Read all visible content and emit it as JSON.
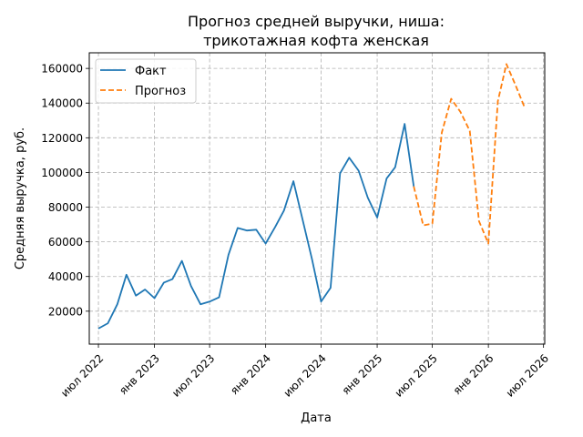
{
  "chart_data": {
    "type": "line",
    "title_line1": "Прогноз средней выручки, ниша:",
    "title_line2": "трикотажная кофта женская",
    "xlabel": "Дата",
    "ylabel": "Средняя выручка, руб.",
    "xlim": [
      "2022-06-01",
      "2026-07-05"
    ],
    "ylim": [
      1000,
      169000
    ],
    "grid": true,
    "legend_position": "top-left",
    "x_ticks": [
      {
        "date": "2022-07-01",
        "label": "июл 2022"
      },
      {
        "date": "2023-01-01",
        "label": "янв 2023"
      },
      {
        "date": "2023-07-01",
        "label": "июл 2023"
      },
      {
        "date": "2024-01-01",
        "label": "янв 2024"
      },
      {
        "date": "2024-07-01",
        "label": "июл 2024"
      },
      {
        "date": "2025-01-01",
        "label": "янв 2025"
      },
      {
        "date": "2025-07-01",
        "label": "июл 2025"
      },
      {
        "date": "2026-01-01",
        "label": "янв 2026"
      },
      {
        "date": "2026-07-01",
        "label": "июл 2026"
      }
    ],
    "y_ticks": [
      {
        "value": 20000,
        "label": "20000"
      },
      {
        "value": 40000,
        "label": "40000"
      },
      {
        "value": 60000,
        "label": "60000"
      },
      {
        "value": 80000,
        "label": "80000"
      },
      {
        "value": 100000,
        "label": "100000"
      },
      {
        "value": 120000,
        "label": "120000"
      },
      {
        "value": 140000,
        "label": "140000"
      },
      {
        "value": 160000,
        "label": "160000"
      }
    ],
    "series": [
      {
        "name": "Факт",
        "color": "#1f77b4",
        "style": "solid",
        "x": [
          "2022-07-01",
          "2022-08-01",
          "2022-09-01",
          "2022-10-01",
          "2022-11-01",
          "2022-12-01",
          "2023-01-01",
          "2023-02-01",
          "2023-03-01",
          "2023-04-01",
          "2023-05-01",
          "2023-06-01",
          "2023-07-01",
          "2023-08-01",
          "2023-09-01",
          "2023-10-01",
          "2023-11-01",
          "2023-12-01",
          "2024-01-01",
          "2024-02-01",
          "2024-03-01",
          "2024-04-01",
          "2024-05-01",
          "2024-06-01",
          "2024-07-01",
          "2024-08-01",
          "2024-09-01",
          "2024-10-01",
          "2024-11-01",
          "2024-12-01",
          "2025-01-01",
          "2025-02-01",
          "2025-03-01",
          "2025-04-01",
          "2025-05-01"
        ],
        "y": [
          10000,
          13000,
          24000,
          41000,
          29000,
          32500,
          27500,
          36500,
          38500,
          49000,
          34500,
          24000,
          25500,
          28000,
          52500,
          68000,
          66500,
          67000,
          59000,
          68500,
          78000,
          95000,
          73000,
          50000,
          25500,
          33500,
          99500,
          108500,
          101000,
          85500,
          74000,
          96500,
          103000,
          128000,
          92000
        ]
      },
      {
        "name": "Прогноз",
        "color": "#ff7f0e",
        "style": "dashed",
        "x": [
          "2025-05-01",
          "2025-06-01",
          "2025-07-01",
          "2025-08-01",
          "2025-09-01",
          "2025-10-01",
          "2025-11-01",
          "2025-12-01",
          "2026-01-01",
          "2026-02-01",
          "2026-03-01",
          "2026-04-01",
          "2026-05-01"
        ],
        "y": [
          92000,
          69500,
          70500,
          123000,
          142500,
          135000,
          124000,
          72000,
          59000,
          141000,
          162500,
          150000,
          137000
        ]
      }
    ]
  }
}
